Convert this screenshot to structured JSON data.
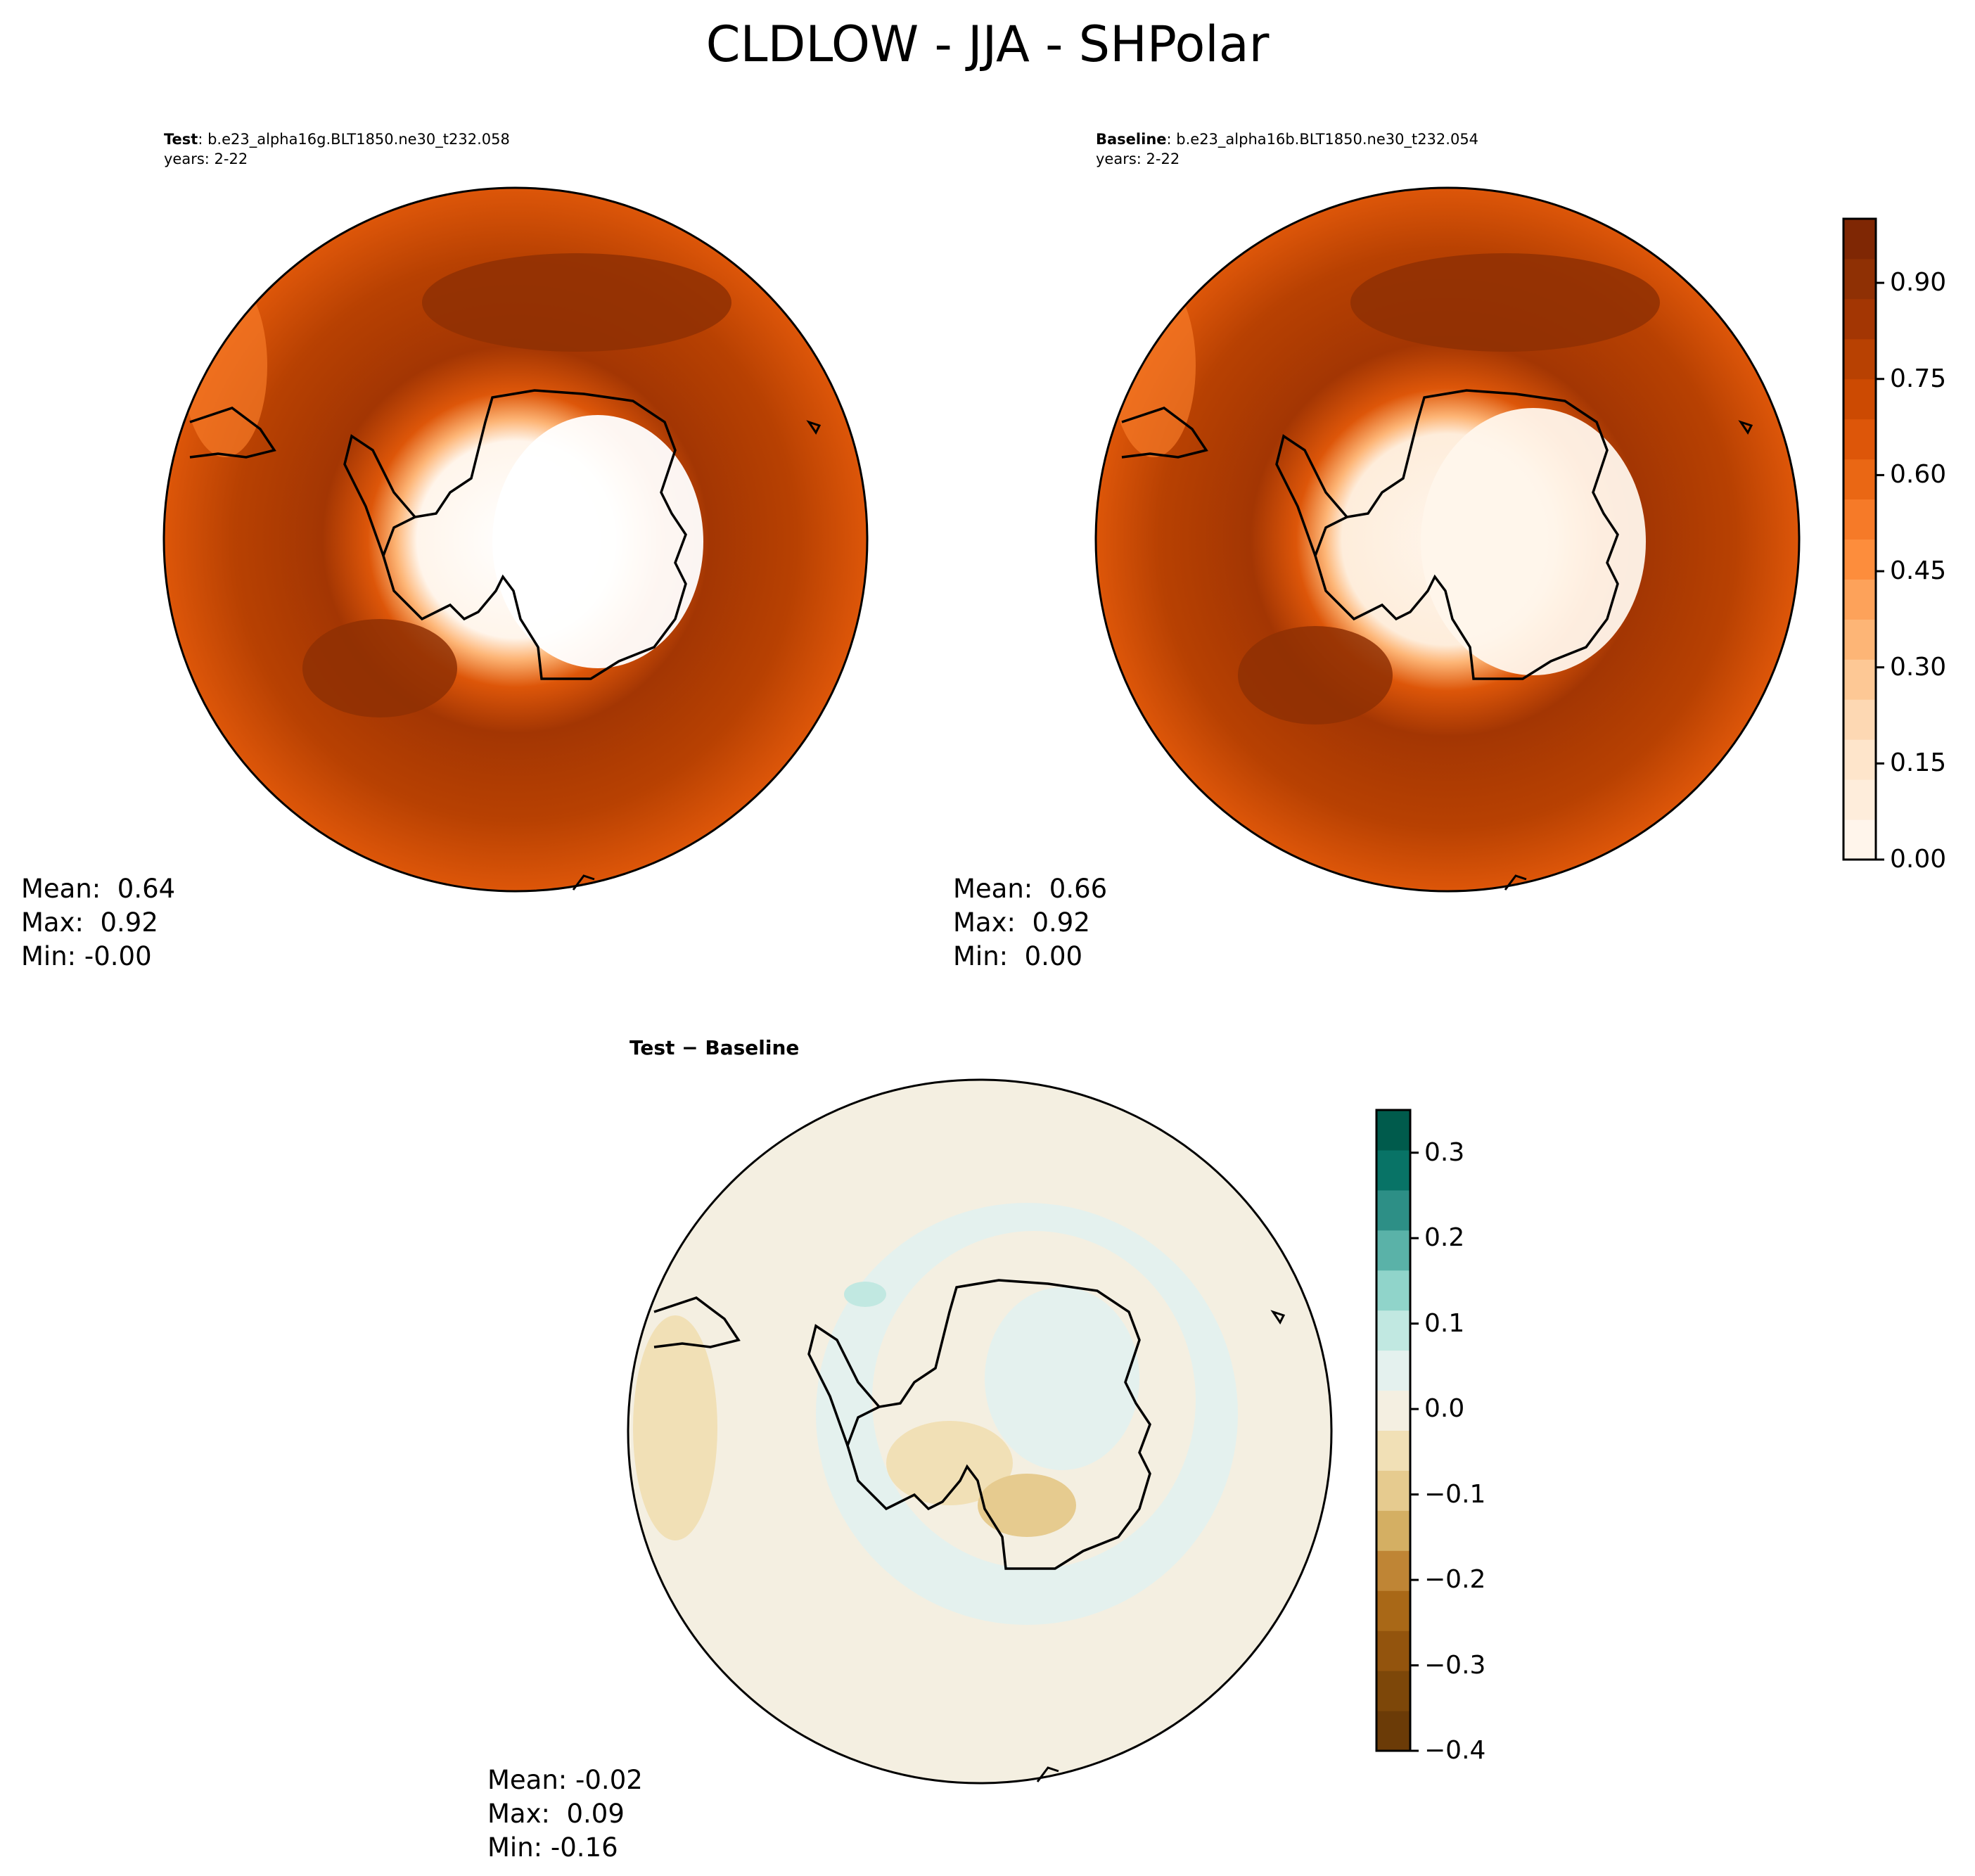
{
  "figure": {
    "title": "CLDLOW - JJA - SHPolar"
  },
  "panels": {
    "test": {
      "label": "Test",
      "case": ": b.e23_alpha16g.BLT1850.ne30_t232.058",
      "years": "years: 2-22",
      "mean": "Mean:  0.64",
      "max": "Max:  0.92",
      "min": "Min: -0.00"
    },
    "baseline": {
      "label": "Baseline",
      "case": ": b.e23_alpha16b.BLT1850.ne30_t232.054",
      "years": "years: 2-22",
      "mean": "Mean:  0.66",
      "max": "Max:  0.92",
      "min": "Min:  0.00"
    },
    "diff": {
      "label": "Test − Baseline",
      "mean": "Mean: -0.02",
      "max": "Max:  0.09",
      "min": "Min: -0.16"
    }
  },
  "colorbars": {
    "main": {
      "min": 0.0,
      "max": 1.0,
      "ticks": [
        0.0,
        0.15,
        0.3,
        0.45,
        0.6,
        0.75,
        0.9
      ],
      "tick_labels": [
        "0.00",
        "0.15",
        "0.30",
        "0.45",
        "0.60",
        "0.75",
        "0.90"
      ],
      "colors": [
        "#fff5eb",
        "#feeddb",
        "#fee5cb",
        "#fdd8b3",
        "#fdc895",
        "#fdb576",
        "#fda25a",
        "#fd8d3c",
        "#f67a28",
        "#ea6714",
        "#dd5609",
        "#cc4a02",
        "#b84102",
        "#a33603",
        "#8f3004",
        "#7f2704"
      ]
    },
    "diff": {
      "min": -0.4,
      "max": 0.35,
      "ticks": [
        -0.4,
        -0.3,
        -0.2,
        -0.1,
        0.0,
        0.1,
        0.2,
        0.3
      ],
      "tick_labels": [
        "−0.4",
        "−0.3",
        "−0.2",
        "−0.1",
        "0.0",
        "0.1",
        "0.2",
        "0.3"
      ],
      "colors": [
        "#6b3b07",
        "#7d4709",
        "#93540d",
        "#a96817",
        "#bf8535",
        "#d4af63",
        "#e6cb8f",
        "#f1e0b6",
        "#f4efe1",
        "#e4f1ee",
        "#c1e8e1",
        "#90d4ca",
        "#5ab2a8",
        "#2d8f86",
        "#087366",
        "#005b4c"
      ]
    }
  },
  "maps": {
    "projection": "south-polar-stereographic",
    "ocean_colors": {
      "test": [
        "#a83a03",
        "#c54502",
        "#dd5609",
        "#8f3004"
      ],
      "baseline": [
        "#a83a03",
        "#c54502",
        "#dd5609",
        "#8f3004"
      ],
      "diff": [
        "#f4efe1",
        "#e4f1ee",
        "#f1e0b6",
        "#d4af63"
      ]
    }
  }
}
